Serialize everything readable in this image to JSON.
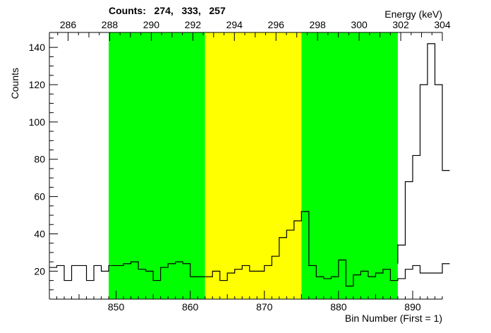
{
  "chart_data": {
    "type": "histogram",
    "title": "Counts:   274,   333,   257",
    "xlabel": "Bin Number (First = 1)",
    "ylabel": "Counts",
    "x2label": "Energy (keV)",
    "xlim": [
      841,
      894
    ],
    "ylim": [
      5,
      148
    ],
    "energy_lim": [
      285.1,
      304.0
    ],
    "x_ticks": [
      850,
      860,
      870,
      880,
      890
    ],
    "y_ticks": [
      20,
      40,
      60,
      80,
      100,
      120,
      140
    ],
    "energy_ticks": [
      286,
      288,
      290,
      292,
      294,
      296,
      298,
      300,
      302,
      304
    ],
    "regions": [
      {
        "name": "background-left",
        "x_start": 849,
        "x_end": 862,
        "color": "#00ff00"
      },
      {
        "name": "peak",
        "x_start": 862,
        "x_end": 875,
        "color": "#ffff00"
      },
      {
        "name": "background-right",
        "x_start": 875,
        "x_end": 888,
        "color": "#00ff00"
      }
    ],
    "bins": {
      "start": 841,
      "width": 1,
      "values": [
        22,
        23,
        15,
        23,
        23,
        15,
        23,
        20,
        23,
        23,
        24,
        25,
        21,
        20,
        15,
        22,
        24,
        25,
        24,
        17,
        17,
        17,
        20,
        15,
        19,
        21,
        23,
        20,
        20,
        23,
        28,
        38,
        42,
        47,
        52,
        23,
        17,
        16,
        17,
        26,
        12,
        18,
        20,
        17,
        19,
        21,
        15,
        16,
        21,
        23,
        19,
        19,
        19,
        24
      ]
    },
    "tail_bins": {
      "start": 888,
      "width": 1,
      "values": [
        34,
        68,
        82,
        120,
        142,
        120,
        74
      ]
    },
    "grid": false,
    "legend": "none"
  }
}
